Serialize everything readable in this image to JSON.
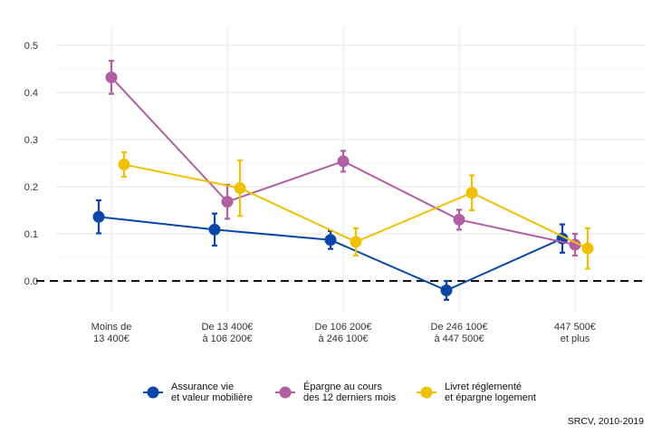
{
  "chart_data": {
    "type": "line",
    "categories": [
      [
        "Moins de",
        "13 400€"
      ],
      [
        "De 13 400€",
        "à 106 200€"
      ],
      [
        "De 106 200€",
        "à 246 100€"
      ],
      [
        "De 246 100€",
        "à 447 500€"
      ],
      [
        "447 500€",
        "et plus"
      ]
    ],
    "ylim": [
      -0.05,
      0.52
    ],
    "yticks": [
      "0.0",
      "0.1",
      "0.2",
      "0.3",
      "0.4",
      "0.5"
    ],
    "grid": true,
    "reference_line": 0,
    "legend_position": "bottom",
    "caption": "SRCV, 2010-2019",
    "series": [
      {
        "name": [
          "Assurance vie",
          "et valeur mobilière"
        ],
        "color": "#0a47a9",
        "values": [
          0.136,
          0.109,
          0.087,
          -0.02,
          0.09
        ],
        "lower": [
          0.101,
          0.075,
          0.068,
          -0.04,
          0.06
        ],
        "upper": [
          0.171,
          0.143,
          0.106,
          0.0,
          0.12
        ]
      },
      {
        "name": [
          "Épargne au cours",
          "des 12 derniers mois"
        ],
        "color": "#b05fa4",
        "values": [
          0.432,
          0.168,
          0.254,
          0.13,
          0.077
        ],
        "lower": [
          0.397,
          0.132,
          0.232,
          0.109,
          0.054
        ],
        "upper": [
          0.467,
          0.204,
          0.276,
          0.151,
          0.1
        ]
      },
      {
        "name": [
          "Livret réglementé",
          "et épargne logement"
        ],
        "color": "#efc100",
        "values": [
          0.247,
          0.197,
          0.083,
          0.187,
          0.069
        ],
        "lower": [
          0.221,
          0.138,
          0.054,
          0.15,
          0.026
        ],
        "upper": [
          0.273,
          0.256,
          0.112,
          0.224,
          0.112
        ]
      }
    ]
  }
}
